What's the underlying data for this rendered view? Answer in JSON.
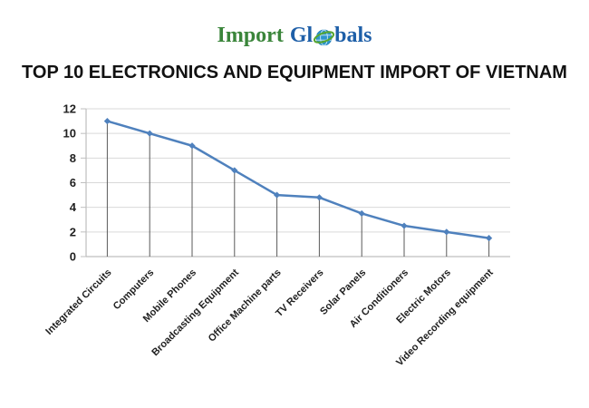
{
  "logo": {
    "part_import": "Import",
    "part_gl": "Gl",
    "part_bals": "bals",
    "green": "#3a853a",
    "blue": "#1e5fa8",
    "globe_blue": "#2d95cc",
    "globe_swirl_green": "#56a531"
  },
  "chart_data": {
    "type": "line",
    "title": "TOP 10 ELECTRONICS AND EQUIPMENT IMPORT OF VIETNAM",
    "categories": [
      "Integrated Circuits",
      "Computers",
      "Mobile Phones",
      "Broadcasting Equipment",
      "Office Machine parts",
      "TV Receivers",
      "Solar Panels",
      "Air Conditioners",
      "Electric Motors",
      "Video Recording equipment"
    ],
    "values": [
      11,
      10,
      9,
      7,
      5,
      4.8,
      3.5,
      2.5,
      2,
      1.5
    ],
    "y_ticks": [
      0,
      2,
      4,
      6,
      8,
      10,
      12
    ],
    "ylim": [
      0,
      12
    ],
    "xlabel": "",
    "ylabel": "",
    "grid": true,
    "legend": "none",
    "marker": "diamond",
    "drop_lines": true,
    "label_rotation": -45,
    "colors": {
      "line": "#4f81bd",
      "marker": "#4f81bd",
      "grid": "#d9d9d9",
      "axis": "#bfbfbf",
      "drop_line": "#595959",
      "tick_label": "#1f1f1f"
    }
  }
}
